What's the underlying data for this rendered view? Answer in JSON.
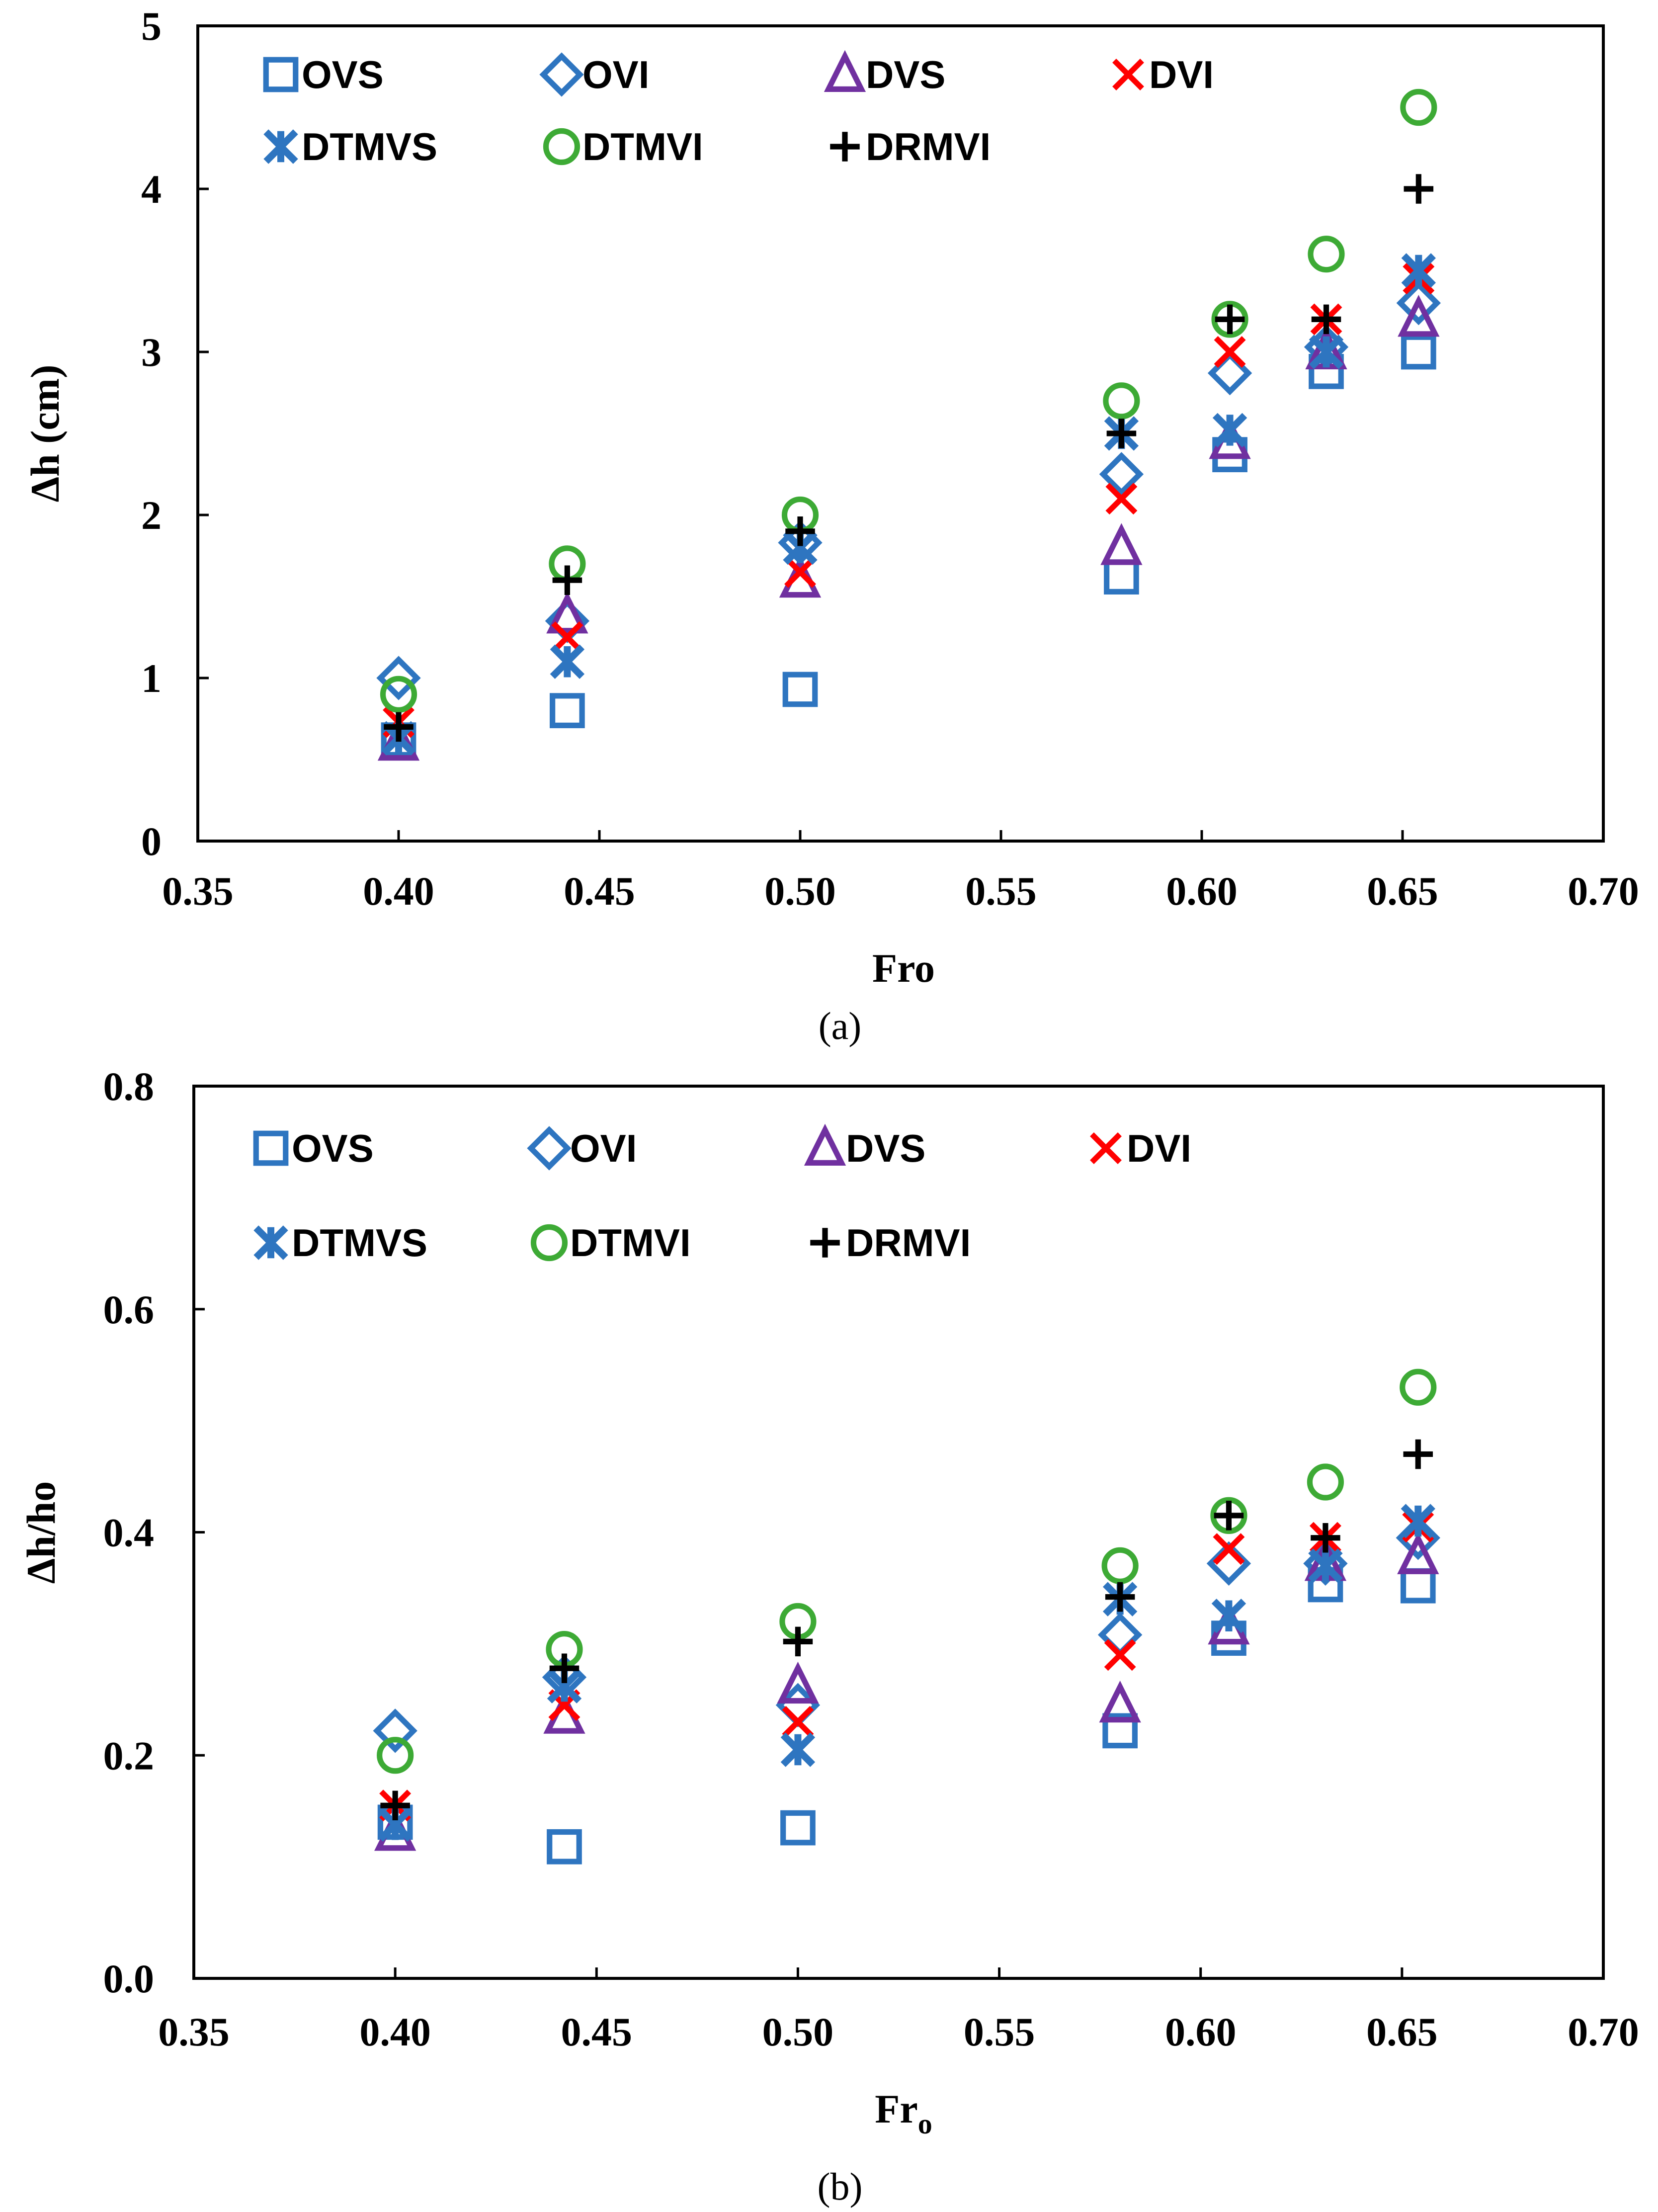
{
  "colors": {
    "OVS": "#2E75C0",
    "OVI": "#2E75C0",
    "DVS": "#7030A0",
    "DVI": "#FF0000",
    "DTMVS": "#2E75C0",
    "DTMVI": "#3DAA35",
    "DRMVI": "#000000"
  },
  "chart_data": [
    {
      "type": "scatter",
      "caption": "(a)",
      "xlabel": "Fro",
      "ylabel": "Δh (cm)",
      "xlim": [
        0.35,
        0.7
      ],
      "ylim": [
        0,
        5
      ],
      "xticks": [
        "0.35",
        "0.40",
        "0.45",
        "0.50",
        "0.55",
        "0.60",
        "0.65",
        "0.70"
      ],
      "yticks": [
        "0",
        "1",
        "2",
        "3",
        "4",
        "5"
      ],
      "legend": [
        "OVS",
        "OVI",
        "DVS",
        "DVI",
        "DTMVS",
        "DTMVI",
        "DRMVI"
      ],
      "legend_layout": "two-rows-top-left",
      "x": [
        0.4,
        0.442,
        0.5,
        0.58,
        0.607,
        0.631,
        0.654
      ],
      "series": [
        {
          "name": "OVS",
          "marker": "square",
          "values": [
            0.62,
            0.8,
            0.93,
            1.62,
            2.37,
            2.88,
            3.0
          ]
        },
        {
          "name": "OVI",
          "marker": "diamond",
          "values": [
            1.0,
            1.35,
            1.83,
            2.25,
            2.87,
            3.03,
            3.3
          ]
        },
        {
          "name": "DVS",
          "marker": "triangle",
          "values": [
            0.6,
            1.38,
            1.6,
            1.8,
            2.45,
            3.0,
            3.2
          ]
        },
        {
          "name": "DVI",
          "marker": "x",
          "values": [
            0.73,
            1.25,
            1.65,
            2.1,
            3.0,
            3.2,
            3.45
          ]
        },
        {
          "name": "DTMVS",
          "marker": "star",
          "values": [
            0.63,
            1.1,
            1.8,
            2.5,
            2.52,
            3.0,
            3.5
          ]
        },
        {
          "name": "DTMVI",
          "marker": "circle",
          "values": [
            0.9,
            1.7,
            2.0,
            2.7,
            3.2,
            3.6,
            4.5
          ]
        },
        {
          "name": "DRMVI",
          "marker": "plus",
          "values": [
            0.7,
            1.6,
            1.9,
            2.5,
            3.2,
            3.2,
            4.0
          ]
        }
      ]
    },
    {
      "type": "scatter",
      "caption": "(b)",
      "xlabel": "Fr",
      "xlabel_sub": "o",
      "ylabel": "Δh/ho",
      "xlim": [
        0.35,
        0.7
      ],
      "ylim": [
        0,
        0.8
      ],
      "xticks": [
        "0.35",
        "0.40",
        "0.45",
        "0.50",
        "0.55",
        "0.60",
        "0.65",
        "0.70"
      ],
      "yticks": [
        "0.0",
        "0.2",
        "0.4",
        "0.6",
        "0.8"
      ],
      "legend": [
        "OVS",
        "OVI",
        "DVS",
        "DVI",
        "DTMVS",
        "DTMVI",
        "DRMVI"
      ],
      "legend_layout": "two-rows-top-left",
      "x": [
        0.4,
        0.442,
        0.5,
        0.58,
        0.607,
        0.631,
        0.654
      ],
      "series": [
        {
          "name": "OVS",
          "marker": "square",
          "values": [
            0.14,
            0.118,
            0.135,
            0.222,
            0.305,
            0.353,
            0.352
          ]
        },
        {
          "name": "OVI",
          "marker": "diamond",
          "values": [
            0.222,
            0.27,
            0.245,
            0.308,
            0.372,
            0.372,
            0.395
          ]
        },
        {
          "name": "DVS",
          "marker": "triangle",
          "values": [
            0.13,
            0.235,
            0.262,
            0.245,
            0.315,
            0.372,
            0.378
          ]
        },
        {
          "name": "DVI",
          "marker": "x",
          "values": [
            0.155,
            0.245,
            0.23,
            0.29,
            0.385,
            0.395,
            0.405
          ]
        },
        {
          "name": "DTMVS",
          "marker": "star",
          "values": [
            0.138,
            0.262,
            0.205,
            0.34,
            0.325,
            0.37,
            0.41
          ]
        },
        {
          "name": "DTMVI",
          "marker": "circle",
          "values": [
            0.2,
            0.295,
            0.32,
            0.37,
            0.415,
            0.445,
            0.53
          ]
        },
        {
          "name": "DRMVI",
          "marker": "plus",
          "values": [
            0.155,
            0.278,
            0.302,
            0.342,
            0.415,
            0.395,
            0.47
          ]
        }
      ]
    }
  ]
}
